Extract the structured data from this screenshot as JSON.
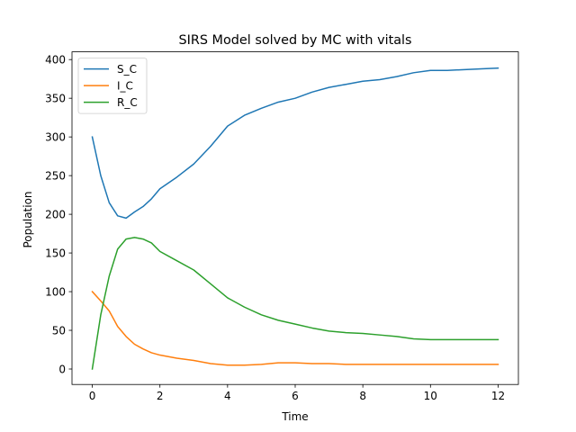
{
  "chart_data": {
    "type": "line",
    "title": "SIRS Model solved by MC with vitals",
    "xlabel": "Time",
    "ylabel": "Population",
    "xlim": [
      -0.6,
      12.6
    ],
    "ylim": [
      -20,
      410
    ],
    "xticks": [
      0,
      2,
      4,
      6,
      8,
      10,
      12
    ],
    "yticks": [
      0,
      50,
      100,
      150,
      200,
      250,
      300,
      350,
      400
    ],
    "grid": false,
    "legend_position": "top-left",
    "x": [
      0,
      0.25,
      0.5,
      0.75,
      1,
      1.25,
      1.5,
      1.75,
      2,
      2.5,
      3,
      3.5,
      4,
      4.5,
      5,
      5.5,
      6,
      6.5,
      7,
      7.5,
      8,
      8.5,
      9,
      9.5,
      10,
      10.5,
      11,
      11.5,
      12
    ],
    "series": [
      {
        "name": "S_C",
        "color": "#1f77b4",
        "values": [
          300,
          250,
          215,
          198,
          195,
          203,
          210,
          220,
          233,
          248,
          265,
          288,
          314,
          328,
          337,
          345,
          350,
          358,
          364,
          368,
          372,
          374,
          378,
          383,
          386,
          386,
          387,
          388,
          389
        ]
      },
      {
        "name": "I_C",
        "color": "#ff7f0e",
        "values": [
          100,
          88,
          75,
          55,
          42,
          32,
          26,
          21,
          18,
          14,
          11,
          7,
          5,
          5,
          6,
          8,
          8,
          7,
          7,
          6,
          6,
          6,
          6,
          6,
          6,
          6,
          6,
          6,
          6
        ]
      },
      {
        "name": "R_C",
        "color": "#2ca02c",
        "values": [
          0,
          70,
          120,
          155,
          168,
          170,
          168,
          163,
          152,
          140,
          128,
          110,
          92,
          80,
          70,
          63,
          58,
          53,
          49,
          47,
          46,
          44,
          42,
          39,
          38,
          38,
          38,
          38,
          38
        ]
      }
    ]
  }
}
